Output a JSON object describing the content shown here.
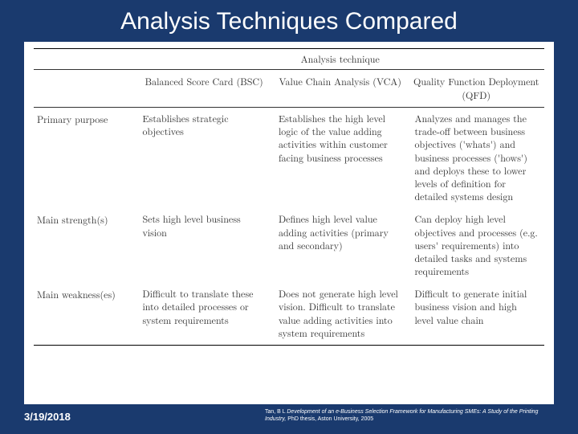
{
  "title": "Analysis Techniques Compared",
  "table": {
    "super_header": "Analysis technique",
    "columns": {
      "c1": "Balanced Score Card (BSC)",
      "c2": "Value Chain Analysis (VCA)",
      "c3": "Quality Function Deployment (QFD)"
    },
    "rows": {
      "r1": {
        "label": "Primary purpose",
        "c1": "Establishes strategic objectives",
        "c2": "Establishes the high level logic of the value adding activities within customer facing business processes",
        "c3": "Analyzes and manages the trade-off between business objectives ('whats') and business processes ('hows') and deploys these to lower levels of definition for detailed systems design"
      },
      "r2": {
        "label": "Main strength(s)",
        "c1": "Sets high level business vision",
        "c2": "Defines high level value adding activities (primary and secondary)",
        "c3": "Can deploy high level objectives and processes (e.g. users' requirements) into detailed tasks and systems requirements"
      },
      "r3": {
        "label": "Main weakness(es)",
        "c1": "Difficult to translate these into detailed processes or system requirements",
        "c2": "Does not generate high level vision. Difficult to translate value adding activities into system requirements",
        "c3": "Difficult to generate initial business vision and high level value chain"
      }
    }
  },
  "footer": {
    "date": "3/19/2018",
    "citation_author": "Tan, B L ",
    "citation_title": "Development of an e-Business Selection Framework for Manufacturing SMEs: A Study of the Printing Industry,",
    "citation_rest": " PhD thesis, Aston University, 2005"
  },
  "colors": {
    "background": "#1a3a6e",
    "text_light": "#ffffff",
    "table_bg": "#ffffff",
    "table_text": "#333333"
  }
}
